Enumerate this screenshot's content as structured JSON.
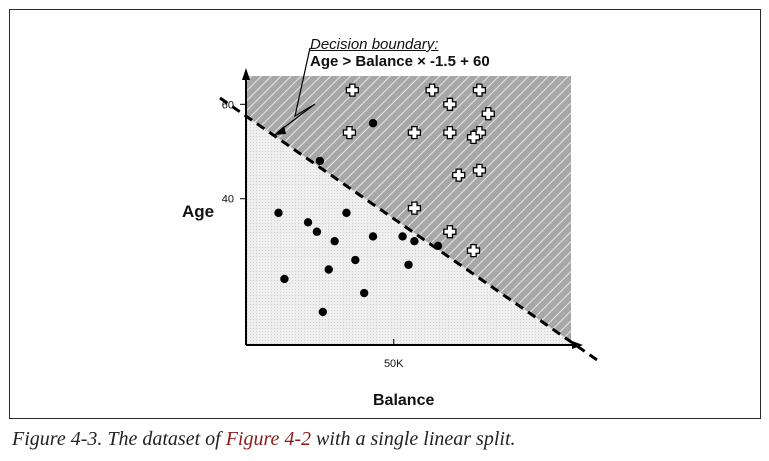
{
  "chart_data": {
    "type": "scatter",
    "title": "",
    "xlabel": "Balance",
    "ylabel": "Age",
    "x_ticks": [
      {
        "value": 50000,
        "label": "50K"
      }
    ],
    "y_ticks": [
      {
        "value": 40,
        "label": "40"
      },
      {
        "value": 60,
        "label": "60"
      }
    ],
    "xlim": [
      0,
      110000
    ],
    "ylim": [
      9,
      66
    ],
    "decision_boundary": {
      "annotation_title": "Decision boundary:",
      "equation": "Age > Balance × -1.5 + 60",
      "region_above": "shaded-hatched",
      "region_below": "light-dotted"
    },
    "series": [
      {
        "marker": "filled-dot",
        "points": [
          [
            43000,
            56
          ],
          [
            25000,
            48
          ],
          [
            11000,
            37
          ],
          [
            21000,
            35
          ],
          [
            24000,
            33
          ],
          [
            34000,
            37
          ],
          [
            30000,
            31
          ],
          [
            53000,
            32
          ],
          [
            57000,
            31
          ],
          [
            65000,
            30
          ],
          [
            43000,
            32
          ],
          [
            37000,
            27
          ],
          [
            28000,
            25
          ],
          [
            55000,
            26
          ],
          [
            13000,
            23
          ],
          [
            40000,
            20
          ],
          [
            26000,
            16
          ]
        ]
      },
      {
        "marker": "plus",
        "points": [
          [
            36000,
            63
          ],
          [
            63000,
            63
          ],
          [
            79000,
            63
          ],
          [
            69000,
            60
          ],
          [
            82000,
            58
          ],
          [
            35000,
            54
          ],
          [
            57000,
            54
          ],
          [
            69000,
            54
          ],
          [
            79000,
            54
          ],
          [
            77000,
            53
          ],
          [
            72000,
            45
          ],
          [
            79000,
            46
          ],
          [
            57000,
            38
          ],
          [
            69000,
            33
          ],
          [
            77000,
            29
          ]
        ]
      }
    ]
  },
  "caption": {
    "prefix": "Figure 4-3. The dataset of ",
    "link": "Figure 4-2",
    "suffix": " with a single linear split."
  },
  "colors": {
    "shaded_region": "#a7a7a7",
    "light_region": "#ececec",
    "caption_link": "#8b1a1a"
  }
}
